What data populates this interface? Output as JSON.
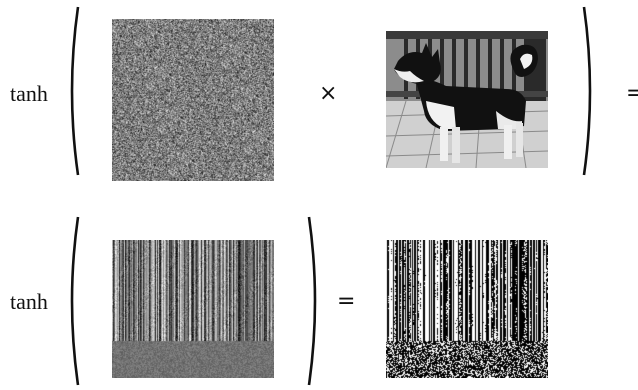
{
  "row1": {
    "function_label": "tanh",
    "operator": "×",
    "equals": "=",
    "panels": [
      {
        "icon": "random-noise-image"
      },
      {
        "icon": "dog-photo"
      }
    ]
  },
  "row2": {
    "function_label": "tanh",
    "equals": "=",
    "panels": [
      {
        "icon": "projected-feature-map"
      },
      {
        "icon": "binarized-feature-map"
      }
    ]
  },
  "colors": {
    "ink": "#111111",
    "background": "#ffffff"
  }
}
